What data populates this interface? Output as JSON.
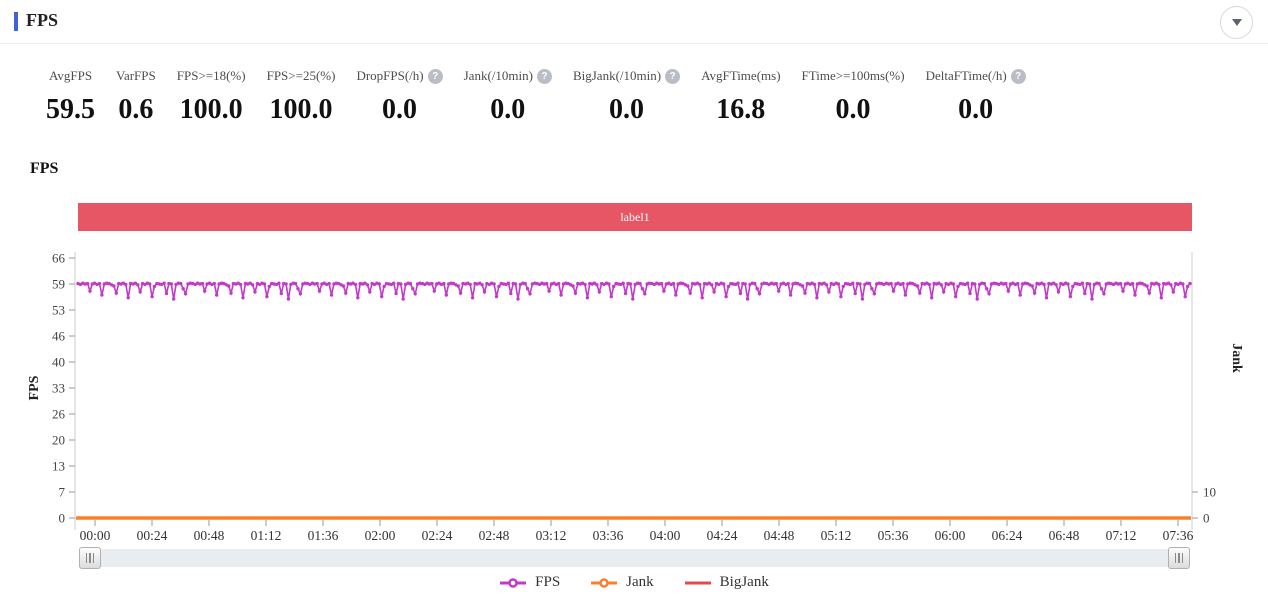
{
  "header": {
    "title": "FPS",
    "accent_color": "#3e63dd",
    "collapse_icon": "chevron-down"
  },
  "stats": [
    {
      "label": "AvgFPS",
      "value": "59.5",
      "has_help": false
    },
    {
      "label": "VarFPS",
      "value": "0.6",
      "has_help": false
    },
    {
      "label": "FPS>=18(%)",
      "value": "100.0",
      "has_help": false
    },
    {
      "label": "FPS>=25(%)",
      "value": "100.0",
      "has_help": false
    },
    {
      "label": "DropFPS(/h)",
      "value": "0.0",
      "has_help": true
    },
    {
      "label": "Jank(/10min)",
      "value": "0.0",
      "has_help": true
    },
    {
      "label": "BigJank(/10min)",
      "value": "0.0",
      "has_help": true
    },
    {
      "label": "AvgFTime(ms)",
      "value": "16.8",
      "has_help": false
    },
    {
      "label": "FTime>=100ms(%)",
      "value": "0.0",
      "has_help": false
    },
    {
      "label": "DeltaFTime(/h)",
      "value": "0.0",
      "has_help": true
    }
  ],
  "help_icon_glyph": "?",
  "chart_section": {
    "title": "FPS",
    "banner": {
      "label": "label1",
      "color": "#e65664"
    }
  },
  "chart_data": {
    "type": "line",
    "title": "FPS",
    "x": {
      "tick_labels": [
        "00:00",
        "00:24",
        "00:48",
        "01:12",
        "01:36",
        "02:00",
        "02:24",
        "02:48",
        "03:12",
        "03:36",
        "04:00",
        "04:24",
        "04:48",
        "05:12",
        "05:36",
        "06:00",
        "06:24",
        "06:48",
        "07:12",
        "07:36"
      ],
      "interval_seconds": 24,
      "total_seconds": 456
    },
    "y_left": {
      "name": "FPS",
      "tick_labels": [
        "0",
        "7",
        "13",
        "20",
        "26",
        "33",
        "40",
        "46",
        "53",
        "59",
        "66"
      ],
      "min": 0,
      "max": 66
    },
    "y_right": {
      "name": "Jank",
      "tick_labels": [
        "0",
        "10"
      ],
      "min": 0,
      "max": 100
    },
    "grid": false,
    "legend_position": "bottom",
    "series": [
      {
        "name": "FPS",
        "color": "#c23ac8",
        "type": "line",
        "marker": "circle",
        "baseline": 59.5,
        "pattern_values": [
          59.5,
          59.3,
          59.6,
          59.4,
          59.5,
          57.6,
          59.4,
          59.6,
          59.3,
          59.5,
          56.6,
          59.4,
          59.6,
          59.5,
          59.2,
          58.9,
          57.1,
          59.5,
          59.4,
          59.6,
          59.3,
          55.9,
          59.5,
          59.4,
          59.6,
          59.2,
          57.4,
          59.5,
          59.3,
          59.6,
          59.4,
          56.2,
          58.8,
          59.5,
          59.4,
          59.3,
          59.6,
          57.0,
          59.5,
          59.4,
          55.6,
          59.3,
          59.6,
          59.5,
          58.2,
          56.9,
          59.4,
          59.6
        ],
        "description": "holds ~59.5 FPS across the whole 7:36 capture with brief dips to 55-58"
      },
      {
        "name": "Jank",
        "color": "#f8802d",
        "type": "line",
        "constant_value": 0
      },
      {
        "name": "BigJank",
        "color": "#e24b4b",
        "type": "line",
        "constant_value": 0
      }
    ]
  },
  "scrollbar": {
    "left_handle": "drag-handle",
    "right_handle": "drag-handle"
  }
}
